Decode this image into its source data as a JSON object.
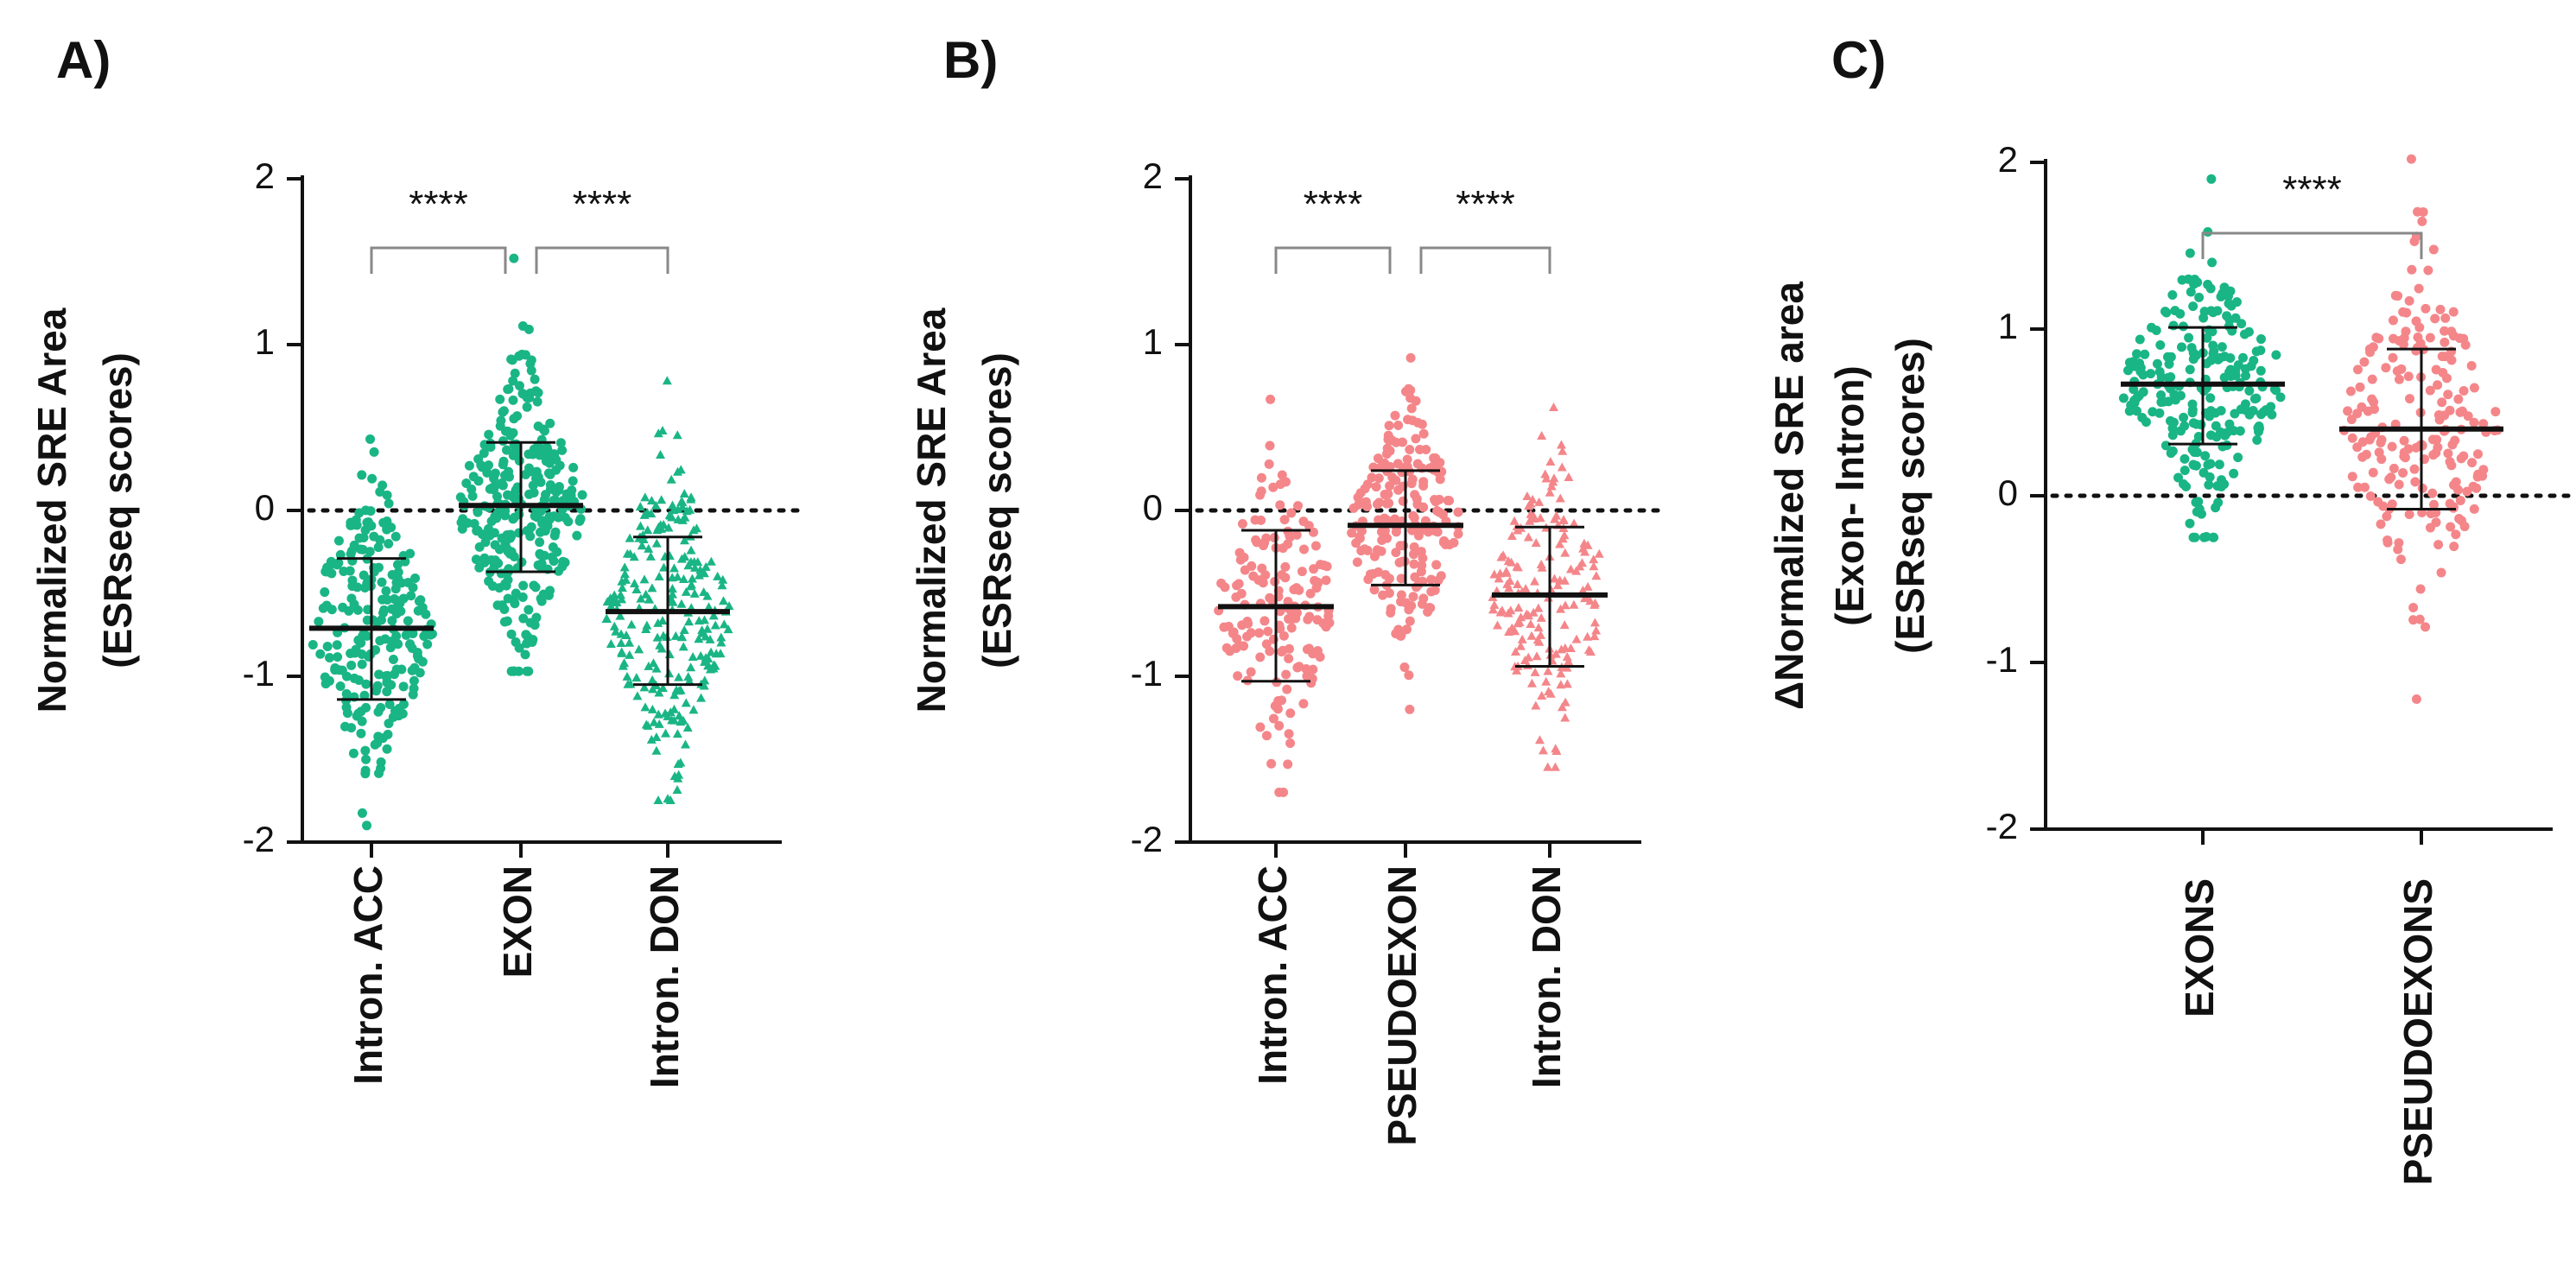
{
  "chart_data": [
    {
      "panel_label": "A)",
      "type": "scatter",
      "ylabel_lines": [
        "Normalized SRE Area",
        "(ESRseq scores)"
      ],
      "ylim": [
        -2,
        2
      ],
      "yticks": [
        "2",
        "1",
        "0",
        "-1",
        "-2"
      ],
      "categories": [
        "Intron. ACC",
        "EXON",
        "Intron. DON"
      ],
      "groups": [
        {
          "name": "Intron. ACC",
          "color": "#1ab585",
          "marker": "circle",
          "n": 230,
          "mean": -0.71,
          "sd_low": -1.14,
          "sd_high": -0.29,
          "min": -1.9,
          "max": 0.43
        },
        {
          "name": "EXON",
          "color": "#1ab585",
          "marker": "circle",
          "n": 300,
          "mean": 0.03,
          "sd_low": -0.37,
          "sd_high": 0.41,
          "min": -0.97,
          "max": 1.52
        },
        {
          "name": "Intron. DON",
          "color": "#1ab585",
          "marker": "triangle",
          "n": 250,
          "mean": -0.61,
          "sd_low": -1.05,
          "sd_high": -0.16,
          "min": -1.75,
          "max": 0.78
        }
      ],
      "significance": [
        {
          "from": 0,
          "to": 1,
          "label": "****"
        },
        {
          "from": 1,
          "to": 2,
          "label": "****"
        }
      ]
    },
    {
      "panel_label": "B)",
      "type": "scatter",
      "ylabel_lines": [
        "Normalized SRE Area",
        "(ESRseq scores)"
      ],
      "ylim": [
        -2,
        2
      ],
      "yticks": [
        "2",
        "1",
        "0",
        "-1",
        "-2"
      ],
      "categories": [
        "Intron. ACC",
        "PSEUDOEXON",
        "Intron. DON"
      ],
      "groups": [
        {
          "name": "Intron. ACC",
          "color": "#f4868a",
          "marker": "circle",
          "n": 160,
          "mean": -0.58,
          "sd_low": -1.03,
          "sd_high": -0.12,
          "min": -1.7,
          "max": 0.67
        },
        {
          "name": "PSEUDOEXON",
          "color": "#f4868a",
          "marker": "circle",
          "n": 200,
          "mean": -0.09,
          "sd_low": -0.45,
          "sd_high": 0.24,
          "min": -1.2,
          "max": 0.92
        },
        {
          "name": "Intron. DON",
          "color": "#f4868a",
          "marker": "triangle",
          "n": 170,
          "mean": -0.51,
          "sd_low": -0.94,
          "sd_high": -0.1,
          "min": -1.55,
          "max": 0.62
        }
      ],
      "significance": [
        {
          "from": 0,
          "to": 1,
          "label": "****"
        },
        {
          "from": 1,
          "to": 2,
          "label": "****"
        }
      ]
    },
    {
      "panel_label": "C)",
      "type": "scatter",
      "ylabel_lines": [
        "ΔNormalized SRE area",
        "(Exon- Intron)",
        "(ESRseq scores)"
      ],
      "ylim": [
        -2,
        2
      ],
      "yticks": [
        "2",
        "1",
        "0",
        "-1",
        "-2"
      ],
      "categories": [
        "EXONS",
        "PSEUDOEXONS"
      ],
      "groups": [
        {
          "name": "EXONS",
          "color": "#1ab585",
          "marker": "circle",
          "n": 240,
          "mean": 0.67,
          "sd_low": 0.31,
          "sd_high": 1.01,
          "min": -0.25,
          "max": 1.9
        },
        {
          "name": "PSEUDOEXONS",
          "color": "#f4868a",
          "marker": "circle",
          "n": 200,
          "mean": 0.4,
          "sd_low": -0.08,
          "sd_high": 0.88,
          "min": -1.22,
          "max": 2.02
        }
      ],
      "significance": [
        {
          "from": 0,
          "to": 1,
          "label": "****"
        }
      ]
    }
  ]
}
